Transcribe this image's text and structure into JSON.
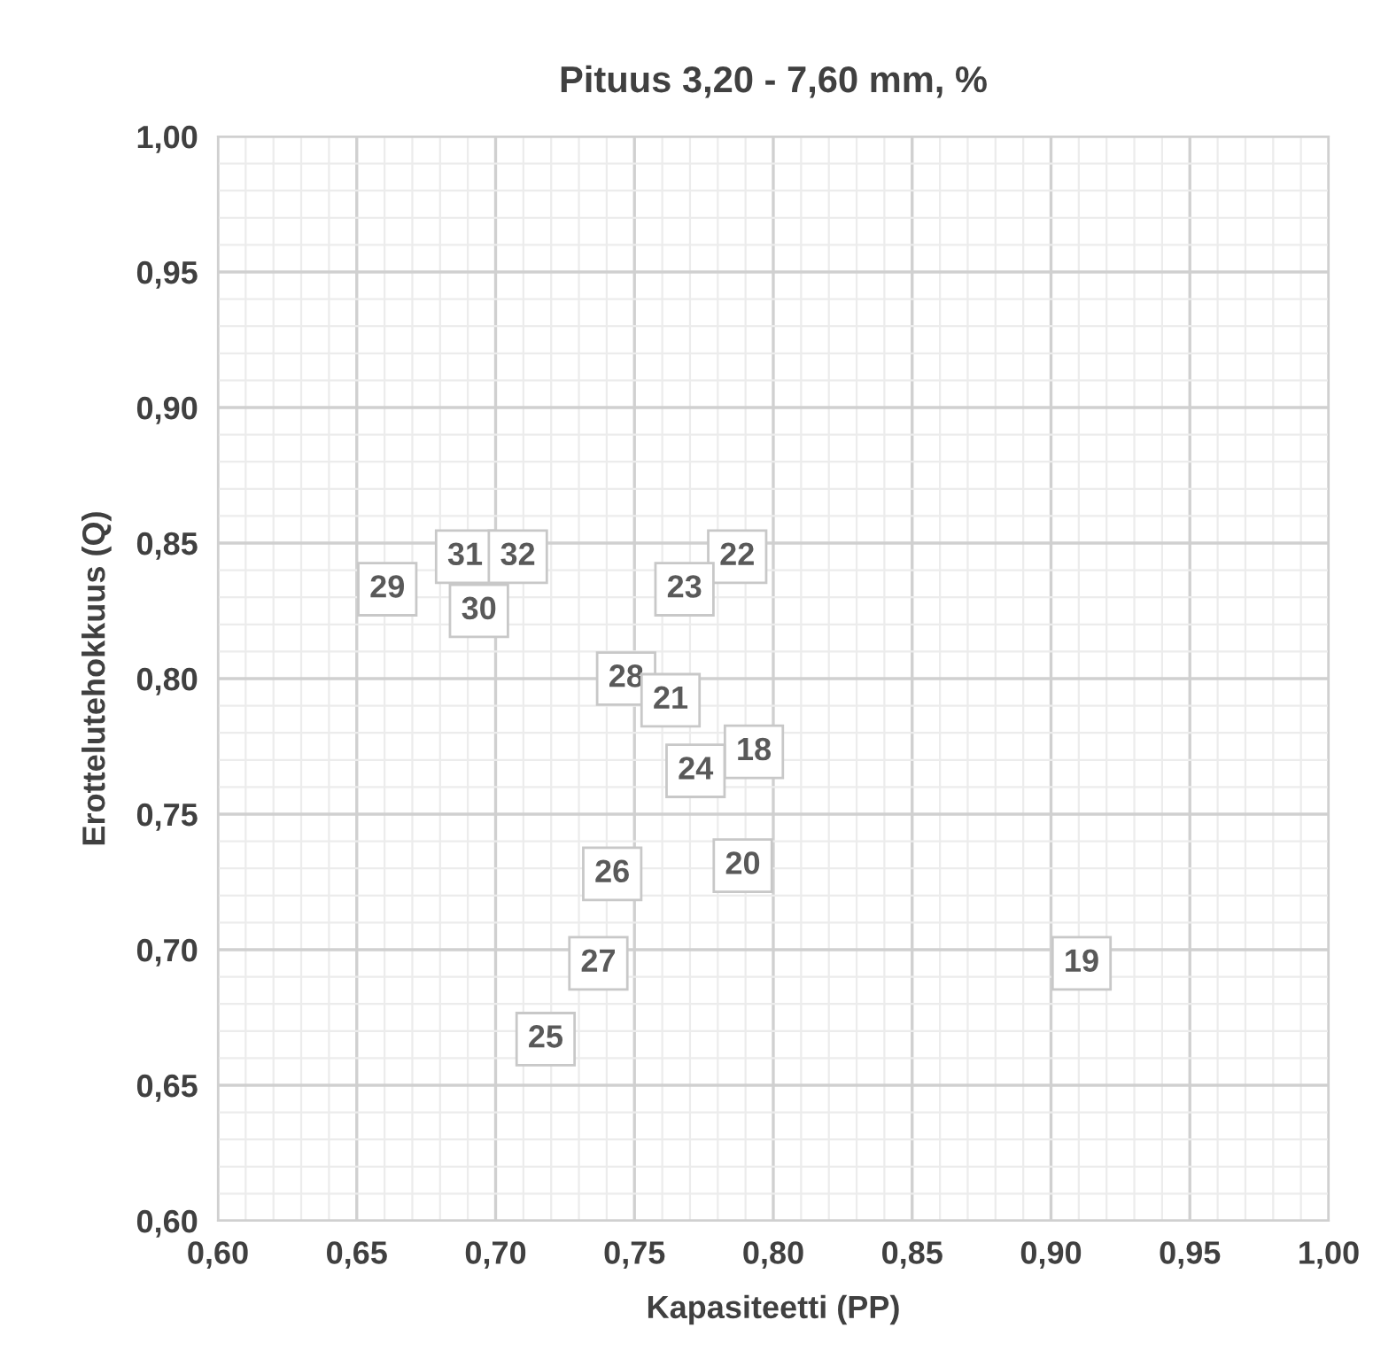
{
  "chart_data": {
    "type": "scatter",
    "title": "Pituus 3,20 - 7,60 mm, %",
    "xlabel": "Kapasiteetti (PP)",
    "ylabel": "Erottelutehokkuus (Q)",
    "series": [
      {
        "color": "#595959",
        "x": [
          0.661,
          0.689,
          0.708,
          0.694,
          0.787,
          0.768,
          0.747,
          0.763,
          0.793,
          0.772,
          0.742,
          0.789,
          0.737,
          0.911,
          0.718
        ],
        "values": [
          0.833,
          0.845,
          0.845,
          0.825,
          0.845,
          0.833,
          0.8,
          0.792,
          0.773,
          0.766,
          0.728,
          0.731,
          0.695,
          0.695,
          0.667
        ]
      }
    ],
    "annotations": [
      {
        "text": "29",
        "x": 0.661,
        "y": 0.833
      },
      {
        "text": "31",
        "x": 0.689,
        "y": 0.845
      },
      {
        "text": "32",
        "x": 0.708,
        "y": 0.845
      },
      {
        "text": "30",
        "x": 0.694,
        "y": 0.825
      },
      {
        "text": "22",
        "x": 0.787,
        "y": 0.845
      },
      {
        "text": "23",
        "x": 0.768,
        "y": 0.833
      },
      {
        "text": "28",
        "x": 0.747,
        "y": 0.8
      },
      {
        "text": "21",
        "x": 0.763,
        "y": 0.792
      },
      {
        "text": "18",
        "x": 0.793,
        "y": 0.773
      },
      {
        "text": "24",
        "x": 0.772,
        "y": 0.766
      },
      {
        "text": "26",
        "x": 0.742,
        "y": 0.728
      },
      {
        "text": "20",
        "x": 0.789,
        "y": 0.731
      },
      {
        "text": "27",
        "x": 0.737,
        "y": 0.695
      },
      {
        "text": "19",
        "x": 0.911,
        "y": 0.695
      },
      {
        "text": "25",
        "x": 0.718,
        "y": 0.667
      }
    ],
    "marker": "none",
    "grid": true,
    "xlim": [
      0.6,
      1.0
    ],
    "ylim": [
      0.6,
      1.0
    ],
    "xticks": [
      {
        "value": 0.6,
        "label": "0,60"
      },
      {
        "value": 0.65,
        "label": "0,65"
      },
      {
        "value": 0.7,
        "label": "0,70"
      },
      {
        "value": 0.75,
        "label": "0,75"
      },
      {
        "value": 0.8,
        "label": "0,80"
      },
      {
        "value": 0.85,
        "label": "0,85"
      },
      {
        "value": 0.9,
        "label": "0,90"
      },
      {
        "value": 0.95,
        "label": "0,95"
      },
      {
        "value": 1.0,
        "label": "1,00"
      }
    ],
    "yticks": [
      {
        "value": 0.6,
        "label": "0,60"
      },
      {
        "value": 0.65,
        "label": "0,65"
      },
      {
        "value": 0.7,
        "label": "0,70"
      },
      {
        "value": 0.75,
        "label": "0,75"
      },
      {
        "value": 0.8,
        "label": "0,80"
      },
      {
        "value": 0.85,
        "label": "0,85"
      },
      {
        "value": 0.9,
        "label": "0,90"
      },
      {
        "value": 0.95,
        "label": "0,95"
      },
      {
        "value": 1.0,
        "label": "1,00"
      }
    ]
  }
}
